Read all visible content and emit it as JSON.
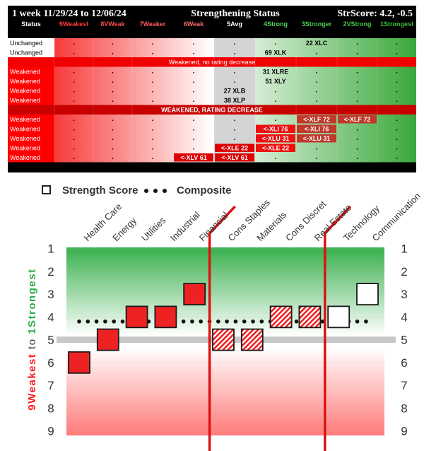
{
  "table": {
    "header": {
      "title_left": "1 week 11/29/24 to 12/06/24",
      "title_center": "Strengthening Status",
      "title_right": "StrScore: 4.2, -0.5"
    },
    "columns": [
      {
        "label": "Status",
        "color": "#ffffff"
      },
      {
        "label": "9Weakest",
        "color": "#ff3b3b"
      },
      {
        "label": "8VWeak",
        "color": "#ff4a4a"
      },
      {
        "label": "7Weaker",
        "color": "#ff5a5a"
      },
      {
        "label": "6Weak",
        "color": "#ff6b6b"
      },
      {
        "label": "5Avg",
        "color": "#ffffff"
      },
      {
        "label": "4Strong",
        "color": "#59d659"
      },
      {
        "label": "3Stronger",
        "color": "#4fcf4f"
      },
      {
        "label": "2VStrong",
        "color": "#44c844"
      },
      {
        "label": "1Strongest",
        "color": "#39c039"
      }
    ],
    "avg_sublabel": "Unchanged",
    "section_labels": {
      "weakened_no_decrease": "Weakened, no rating decrease",
      "weakened_decrease": "WEAKENED, RATING DECREASE"
    },
    "dot": ".",
    "rows": [
      {
        "status": "Unchanged",
        "cells": [
          "",
          "",
          "",
          "",
          "",
          "",
          "22 XLC",
          "",
          ""
        ]
      },
      {
        "status": "Unchanged",
        "cells": [
          "",
          "",
          "",
          "",
          "",
          "69 XLK",
          "",
          "",
          ""
        ]
      },
      {
        "status": "Weakened",
        "cells": [
          "",
          "",
          "",
          "",
          "",
          "31 XLRE",
          "",
          "",
          ""
        ]
      },
      {
        "status": "Weakened",
        "cells": [
          "",
          "",
          "",
          "",
          "",
          "51 XLY",
          "",
          "",
          ""
        ]
      },
      {
        "status": "Weakened",
        "cells": [
          "",
          "",
          "",
          "",
          "27 XLB",
          "",
          "",
          "",
          ""
        ]
      },
      {
        "status": "Weakened",
        "cells": [
          "",
          "",
          "",
          "",
          "38 XLP",
          "",
          "",
          "",
          ""
        ]
      },
      {
        "status": "Weakened",
        "cells": [
          "",
          "",
          "",
          "",
          "",
          "",
          "<-XLF 72",
          "<-XLF 72",
          ""
        ]
      },
      {
        "status": "Weakened",
        "cells": [
          "",
          "",
          "",
          "",
          "",
          "<-XLI 76",
          "<-XLI 76",
          "",
          ""
        ]
      },
      {
        "status": "Weakened",
        "cells": [
          "",
          "",
          "",
          "",
          "",
          "<-XLU 31",
          "<-XLU 31",
          "",
          ""
        ]
      },
      {
        "status": "Weakened",
        "cells": [
          "",
          "",
          "",
          "",
          "<-XLE 22",
          "<-XLE 22",
          "",
          "",
          ""
        ]
      },
      {
        "status": "Weakened",
        "cells": [
          "",
          "",
          "",
          "<-XLV 61",
          "<-XLV 61",
          "",
          "",
          "",
          ""
        ]
      }
    ]
  },
  "chart_data": {
    "type": "scatter",
    "legend": {
      "strength_score": "Strength Score",
      "composite": "Composite",
      "placement": "top"
    },
    "categories": [
      "Health Care",
      "Energy",
      "Utilities",
      "Industrial",
      "Financial",
      "Cons Staples",
      "Materials",
      "Cons Discret",
      "Real Estate",
      "Technology",
      "Communication"
    ],
    "strength_score": [
      6,
      5,
      4,
      4,
      3,
      5,
      5,
      4,
      4,
      4,
      3
    ],
    "box_style": [
      "solid",
      "solid",
      "solid",
      "solid",
      "solid",
      "hatched",
      "hatched",
      "hatched",
      "hatched",
      "outline",
      "outline"
    ],
    "composite": 4.2,
    "average_line": 5,
    "y_range": [
      1,
      9
    ],
    "y_inverted": true,
    "y_ticks": [
      "1",
      "2",
      "3",
      "4",
      "5",
      "6",
      "7",
      "8",
      "9"
    ],
    "y_label_top": {
      "digit": "1",
      "word": "Strongest"
    },
    "y_label_bottom": {
      "digit": "9",
      "word": "Weakest"
    },
    "y_label_connector": "to",
    "divider_after": [
      "Financial",
      "Real Estate"
    ],
    "colors": {
      "strong": "#2eaa4a",
      "weak": "#ff1a1a",
      "box_fill": "#ee2222",
      "divider": "#dd1111"
    }
  }
}
